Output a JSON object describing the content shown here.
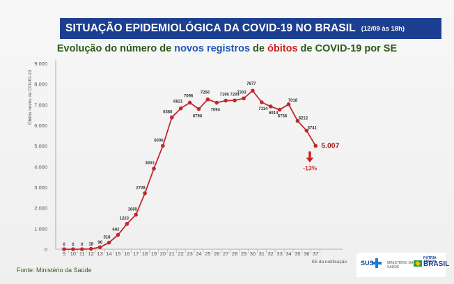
{
  "banner": {
    "title": "SITUAÇÃO EPIDEMIOLÓGICA DA COVID-19 NO BRASIL",
    "date": "(12/09 às 18h)"
  },
  "subtitle": {
    "part1": "Evolução do número de ",
    "part2": "novos registros",
    "part3": " de ",
    "part4": "óbitos",
    "part5": " de COVID-19 por SE"
  },
  "source": "Fonte: Ministério da Saúde",
  "logos": {
    "sus": "SUS",
    "ministerio_line1": "MINISTÉRIO DA",
    "ministerio_line2": "SAÚDE",
    "patria": "PÁTRIA AMADA",
    "brasil": "BRASIL"
  },
  "colors": {
    "banner": "#1c3f91",
    "line": "#c0282d",
    "arrow": "#d0201c",
    "subtitle_green": "#2c5a19"
  },
  "chart_data": {
    "type": "line",
    "title": "Evolução do número de novos registros de óbitos de COVID-19 por SE",
    "xlabel": "SE da notificação",
    "ylabel": "Óbitos novos de COVID-19",
    "x": [
      9,
      10,
      11,
      12,
      13,
      14,
      15,
      16,
      17,
      18,
      19,
      20,
      21,
      22,
      23,
      24,
      25,
      26,
      27,
      28,
      29,
      30,
      31,
      32,
      33,
      34,
      35,
      36,
      37
    ],
    "values": [
      0,
      0,
      0,
      18,
      96,
      318,
      692,
      1223,
      1669,
      2708,
      3903,
      5006,
      6380,
      6821,
      7096,
      6790,
      7256,
      7094,
      7195,
      7204,
      7303,
      7677,
      7114,
      6914,
      6756,
      7018,
      6212,
      5741,
      5007
    ],
    "point_labels": [
      "0",
      "0",
      "0",
      "18",
      "96",
      "318",
      "692",
      "1223",
      "1669",
      "2708",
      "3903",
      "5006",
      "6380",
      "6821",
      "7096",
      "6790",
      "7256",
      "7094",
      "7195",
      "7204",
      "7303",
      "7677",
      "7114",
      "6914",
      "6756",
      "7018",
      "6212",
      "5741",
      ""
    ],
    "last_value_label": "5.007",
    "change_label": "-13%",
    "y_ticks": [
      "0",
      "1.000",
      "2.000",
      "3.000",
      "4.000",
      "5.000",
      "6.000",
      "7.000",
      "8.000",
      "9.000"
    ],
    "ylim": [
      0,
      9000
    ],
    "grid": false,
    "legend": "none"
  }
}
